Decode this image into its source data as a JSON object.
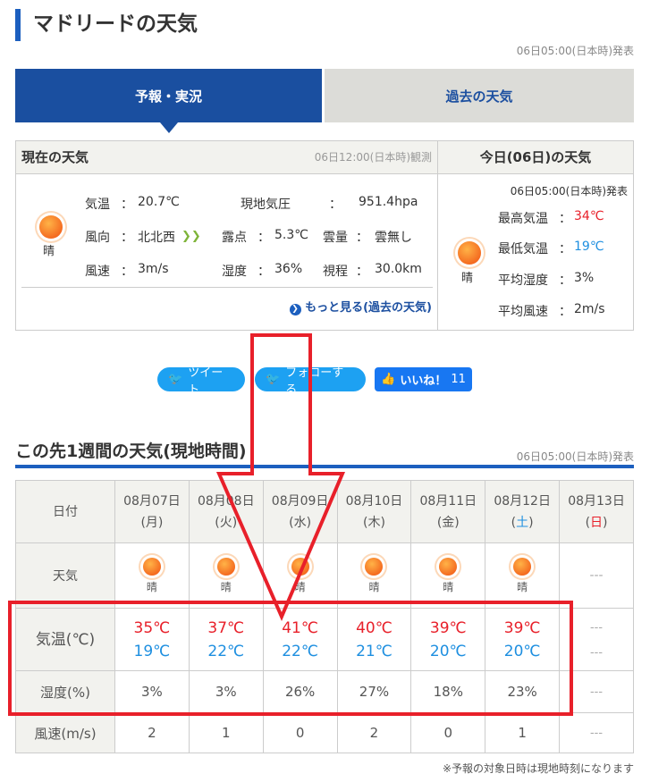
{
  "title": "マドリードの天気",
  "issued": "06日05:00(日本時)発表",
  "tabs": [
    "予報・実況",
    "過去の天気"
  ],
  "current": {
    "header": "現在の天気",
    "observed": "06日12:00(日本時)観測",
    "weather": "晴",
    "icon": "sun-icon",
    "temp_label": "気温",
    "temp": "20.7℃",
    "pressure_label": "現地気圧",
    "pressure": "951.4hpa",
    "wind_dir_label": "風向",
    "wind_dir": "北北西",
    "dew_label": "露点",
    "dew": "5.3℃",
    "cloud_label": "雲量",
    "cloud": "雲無し",
    "wind_speed_label": "風速",
    "wind_speed": "3m/s",
    "humidity_label": "湿度",
    "humidity": "36%",
    "visibility_label": "視程",
    "visibility": "30.0km",
    "more_link": "もっと見る(過去の天気)",
    "colon": "："
  },
  "today": {
    "header": "今日(06日)の天気",
    "issued": "06日05:00(日本時)発表",
    "weather": "晴",
    "max_label": "最高気温",
    "max": "34℃",
    "min_label": "最低気温",
    "min": "19℃",
    "hum_label": "平均湿度",
    "hum": "3%",
    "wind_label": "平均風速",
    "wind": "2m/s"
  },
  "social": {
    "tweet": "ツイート",
    "follow": "フォローする",
    "like": "いいね！",
    "like_count": "11"
  },
  "week": {
    "title": "この先1週間の天気(現地時間)",
    "issued": "06日05:00(日本時)発表",
    "row_labels": [
      "日付",
      "天気",
      "気温(℃)",
      "湿度(%)",
      "風速(m/s)"
    ],
    "days": [
      {
        "date": "08月07日",
        "dow": "月",
        "weather": "晴",
        "high": "35℃",
        "low": "19℃",
        "hum": "3%",
        "wind": "2"
      },
      {
        "date": "08月08日",
        "dow": "火",
        "weather": "晴",
        "high": "37℃",
        "low": "22℃",
        "hum": "3%",
        "wind": "1"
      },
      {
        "date": "08月09日",
        "dow": "水",
        "weather": "晴",
        "high": "41℃",
        "low": "22℃",
        "hum": "26%",
        "wind": "0"
      },
      {
        "date": "08月10日",
        "dow": "木",
        "weather": "晴",
        "high": "40℃",
        "low": "21℃",
        "hum": "27%",
        "wind": "2"
      },
      {
        "date": "08月11日",
        "dow": "金",
        "weather": "晴",
        "high": "39℃",
        "low": "20℃",
        "hum": "18%",
        "wind": "0"
      },
      {
        "date": "08月12日",
        "dow": "土",
        "weather": "晴",
        "high": "39℃",
        "low": "20℃",
        "hum": "23%",
        "wind": "1"
      },
      {
        "date": "08月13日",
        "dow": "日",
        "weather": "---",
        "high": "---",
        "low": "---",
        "hum": "---",
        "wind": "---"
      }
    ],
    "note": "※予報の対象日時は現地時刻になります"
  },
  "colors": {
    "accent": "#1c5fbf",
    "annotation": "#e8202a",
    "high": "#e8202a",
    "low": "#1e8fe0"
  }
}
